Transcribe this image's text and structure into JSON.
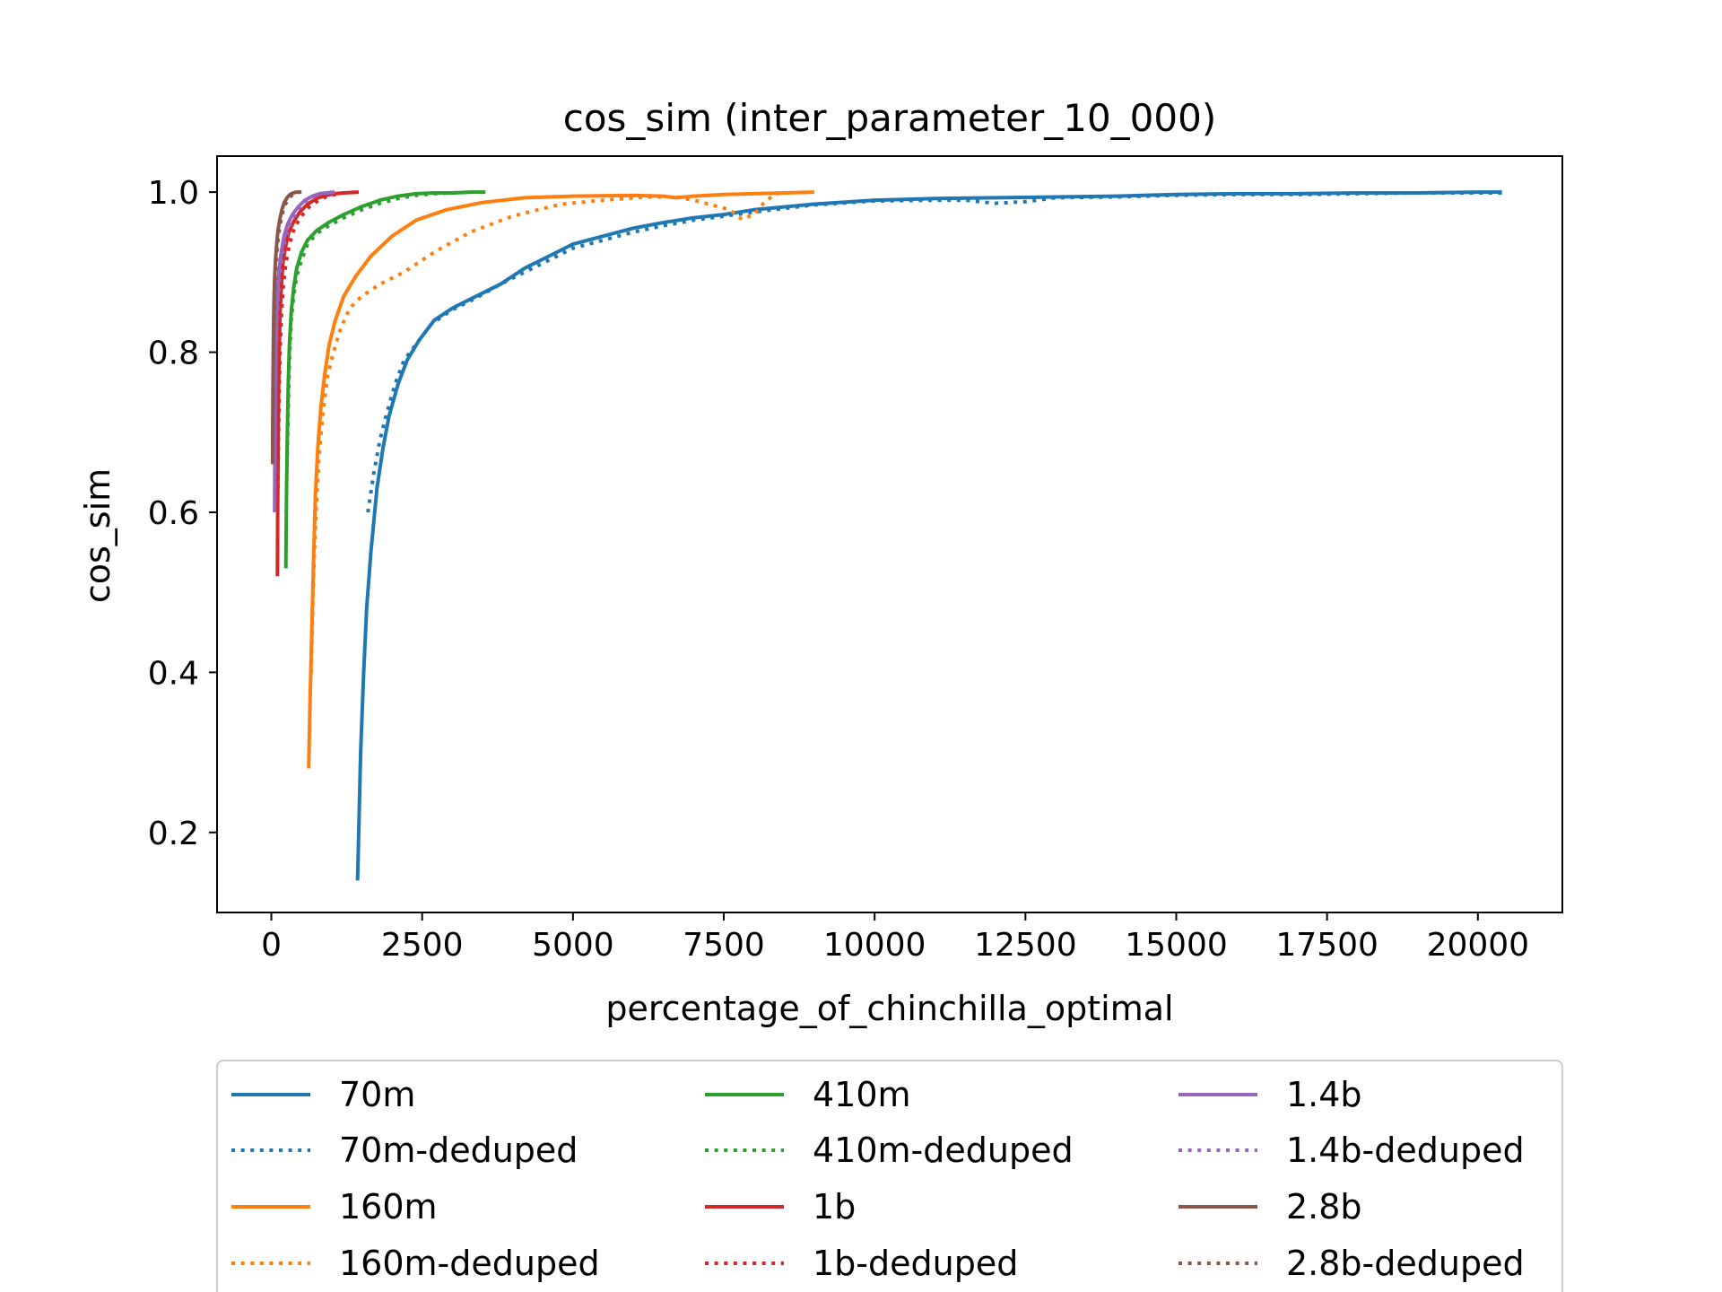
{
  "chart_data": {
    "type": "line",
    "title": "cos_sim (inter_parameter_10_000)",
    "xlabel": "percentage_of_chinchilla_optimal",
    "ylabel": "cos_sim",
    "xlim": [
      -900,
      21400
    ],
    "ylim": [
      0.1,
      1.045
    ],
    "xticks": [
      0,
      2500,
      5000,
      7500,
      10000,
      12500,
      15000,
      17500,
      20000
    ],
    "yticks": [
      0.2,
      0.4,
      0.6,
      0.8,
      1.0
    ],
    "ytick_labels": [
      "0.2",
      "0.4",
      "0.6",
      "0.8",
      "1.0"
    ],
    "grid": false,
    "legend_position": "below-plot, 3 columns",
    "series": [
      {
        "name": "70m",
        "color": "#1f77b4",
        "style": "solid",
        "x": [
          1430,
          1480,
          1530,
          1580,
          1650,
          1750,
          1850,
          1950,
          2100,
          2250,
          2450,
          2700,
          3000,
          3400,
          3800,
          4200,
          4600,
          5000,
          5500,
          6000,
          6500,
          7000,
          7500,
          8000,
          9000,
          10000,
          11000,
          12000,
          13000,
          14000,
          15000,
          16000,
          17000,
          18000,
          19000,
          20000,
          20400
        ],
        "y": [
          0.14,
          0.3,
          0.4,
          0.48,
          0.55,
          0.63,
          0.68,
          0.72,
          0.76,
          0.79,
          0.815,
          0.84,
          0.855,
          0.87,
          0.885,
          0.905,
          0.92,
          0.935,
          0.945,
          0.955,
          0.962,
          0.968,
          0.972,
          0.978,
          0.985,
          0.99,
          0.992,
          0.993,
          0.994,
          0.995,
          0.997,
          0.998,
          0.998,
          0.999,
          0.999,
          1.0,
          1.0
        ]
      },
      {
        "name": "70m-deduped",
        "color": "#1f77b4",
        "style": "dotted",
        "x": [
          1600,
          1700,
          1800,
          1900,
          2050,
          2200,
          2400,
          2650,
          3000,
          3400,
          3800,
          4200,
          4600,
          5000,
          5500,
          6000,
          6500,
          7000,
          7500,
          8000,
          9000,
          10000,
          11000,
          11500,
          12000,
          12500,
          13000,
          14000,
          15000,
          16000,
          17000,
          18000,
          19000,
          20000,
          20400
        ],
        "y": [
          0.6,
          0.65,
          0.69,
          0.72,
          0.76,
          0.79,
          0.81,
          0.835,
          0.853,
          0.868,
          0.885,
          0.9,
          0.915,
          0.93,
          0.94,
          0.95,
          0.958,
          0.965,
          0.97,
          0.975,
          0.984,
          0.989,
          0.99,
          0.99,
          0.986,
          0.988,
          0.993,
          0.994,
          0.996,
          0.997,
          0.997,
          0.998,
          0.999,
          0.999,
          0.999
        ]
      },
      {
        "name": "160m",
        "color": "#ff7f0e",
        "style": "solid",
        "x": [
          620,
          640,
          670,
          700,
          730,
          770,
          820,
          880,
          960,
          1060,
          1200,
          1400,
          1650,
          2000,
          2400,
          2900,
          3500,
          4200,
          5000,
          6000,
          6500,
          6700,
          7000,
          7500,
          8000,
          8500,
          9000
        ],
        "y": [
          0.28,
          0.36,
          0.45,
          0.54,
          0.62,
          0.68,
          0.73,
          0.77,
          0.81,
          0.84,
          0.87,
          0.895,
          0.92,
          0.945,
          0.965,
          0.978,
          0.987,
          0.993,
          0.995,
          0.996,
          0.995,
          0.993,
          0.995,
          0.997,
          0.998,
          0.999,
          1.0
        ]
      },
      {
        "name": "160m-deduped",
        "color": "#ff7f0e",
        "style": "dotted",
        "x": [
          660,
          700,
          740,
          790,
          850,
          930,
          1030,
          1150,
          1300,
          1500,
          1800,
          2200,
          2700,
          3300,
          4000,
          4800,
          5500,
          6200,
          6700,
          7000,
          7300,
          7600,
          7800,
          8000,
          8200,
          8400
        ],
        "y": [
          0.4,
          0.52,
          0.6,
          0.67,
          0.72,
          0.77,
          0.8,
          0.83,
          0.855,
          0.87,
          0.885,
          0.9,
          0.925,
          0.95,
          0.97,
          0.985,
          0.99,
          0.994,
          0.994,
          0.99,
          0.984,
          0.978,
          0.966,
          0.972,
          0.99,
          0.998
        ]
      },
      {
        "name": "410m",
        "color": "#2ca02c",
        "style": "solid",
        "x": [
          240,
          250,
          265,
          280,
          300,
          330,
          370,
          420,
          500,
          600,
          750,
          950,
          1200,
          1500,
          1800,
          2100,
          2400,
          2700,
          3000,
          3300,
          3550
        ],
        "y": [
          0.53,
          0.62,
          0.7,
          0.76,
          0.81,
          0.85,
          0.88,
          0.905,
          0.925,
          0.94,
          0.952,
          0.962,
          0.972,
          0.982,
          0.99,
          0.995,
          0.998,
          0.999,
          0.999,
          1.0,
          1.0
        ]
      },
      {
        "name": "410m-deduped",
        "color": "#2ca02c",
        "style": "dotted",
        "x": [
          260,
          280,
          300,
          330,
          370,
          420,
          500,
          600,
          750,
          950,
          1200,
          1500,
          1800,
          2100,
          2400,
          2700,
          3000,
          3300
        ],
        "y": [
          0.66,
          0.73,
          0.79,
          0.84,
          0.87,
          0.895,
          0.915,
          0.935,
          0.948,
          0.958,
          0.968,
          0.978,
          0.986,
          0.992,
          0.996,
          0.998,
          0.999,
          1.0
        ]
      },
      {
        "name": "1b",
        "color": "#d62728",
        "style": "solid",
        "x": [
          100,
          105,
          112,
          120,
          130,
          145,
          165,
          190,
          230,
          290,
          370,
          470,
          600,
          750,
          900,
          1050,
          1200,
          1450
        ],
        "y": [
          0.52,
          0.6,
          0.68,
          0.75,
          0.8,
          0.85,
          0.88,
          0.91,
          0.93,
          0.95,
          0.963,
          0.975,
          0.985,
          0.992,
          0.996,
          0.998,
          0.999,
          1.0
        ]
      },
      {
        "name": "1b-deduped",
        "color": "#d62728",
        "style": "dotted",
        "x": [
          110,
          120,
          132,
          148,
          170,
          200,
          240,
          300,
          380,
          480,
          600,
          750,
          900,
          1050,
          1200,
          1400
        ],
        "y": [
          0.63,
          0.7,
          0.76,
          0.81,
          0.85,
          0.885,
          0.91,
          0.935,
          0.955,
          0.968,
          0.98,
          0.988,
          0.994,
          0.997,
          0.999,
          1.0
        ]
      },
      {
        "name": "1.4b",
        "color": "#9467bd",
        "style": "solid",
        "x": [
          55,
          58,
          62,
          68,
          76,
          88,
          105,
          130,
          165,
          210,
          270,
          350,
          450,
          560,
          680,
          800,
          920,
          1050
        ],
        "y": [
          0.6,
          0.66,
          0.72,
          0.77,
          0.81,
          0.85,
          0.88,
          0.905,
          0.925,
          0.945,
          0.96,
          0.972,
          0.982,
          0.99,
          0.995,
          0.998,
          0.999,
          1.0
        ]
      },
      {
        "name": "1.4b-deduped",
        "color": "#9467bd",
        "style": "dotted",
        "x": [
          60,
          65,
          72,
          82,
          96,
          115,
          140,
          175,
          220,
          280,
          360,
          460,
          570,
          690,
          810,
          930,
          1000
        ],
        "y": [
          0.65,
          0.71,
          0.76,
          0.8,
          0.84,
          0.87,
          0.895,
          0.918,
          0.938,
          0.955,
          0.968,
          0.98,
          0.988,
          0.994,
          0.998,
          0.999,
          1.0
        ]
      },
      {
        "name": "2.8b",
        "color": "#8c564b",
        "style": "solid",
        "x": [
          20,
          23,
          27,
          32,
          38,
          46,
          56,
          70,
          88,
          110,
          140,
          175,
          215,
          260,
          310,
          360,
          420,
          500
        ],
        "y": [
          0.66,
          0.71,
          0.76,
          0.8,
          0.84,
          0.87,
          0.895,
          0.915,
          0.935,
          0.952,
          0.966,
          0.978,
          0.987,
          0.993,
          0.997,
          0.999,
          1.0,
          1.0
        ]
      },
      {
        "name": "2.8b-deduped",
        "color": "#8c564b",
        "style": "dotted",
        "x": [
          24,
          28,
          33,
          40,
          50,
          62,
          78,
          98,
          122,
          152,
          190,
          235,
          285,
          340,
          400,
          470
        ],
        "y": [
          0.7,
          0.75,
          0.79,
          0.83,
          0.86,
          0.89,
          0.91,
          0.93,
          0.948,
          0.962,
          0.975,
          0.985,
          0.992,
          0.996,
          0.999,
          1.0
        ]
      }
    ]
  }
}
